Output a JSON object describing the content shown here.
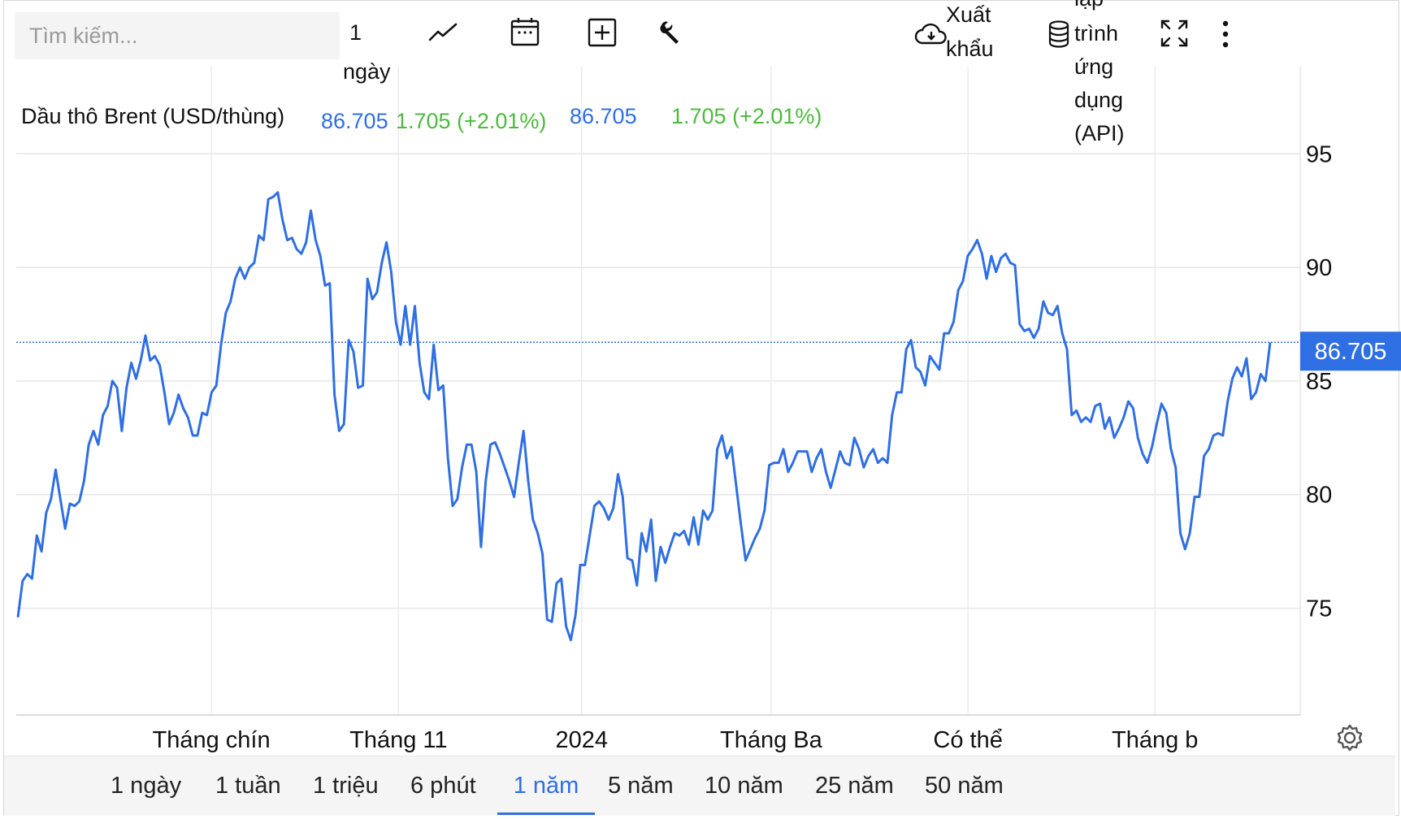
{
  "toolbar": {
    "search_placeholder": "Tìm kiếm...",
    "interval_label_1": "1",
    "interval_label_2": "ngày",
    "export_label_1": "Xuất",
    "export_label_2": "khẩu",
    "api_label_1": "lập",
    "api_label_2": "trình",
    "api_label_3": "ứng",
    "api_label_4": "dụng",
    "api_label_5": "(API)",
    "icons": [
      "line-chart-icon",
      "calendar-icon",
      "add-indicator-icon",
      "wrench-icon",
      "cloud-download-icon",
      "database-icon",
      "fullscreen-icon",
      "more-vertical-icon"
    ]
  },
  "legend": {
    "series_name": "Dầu thô Brent (USD/thùng)",
    "price": "86.705",
    "change": "1.705 (+2.01%)",
    "price_repeat": "86.705",
    "change_repeat": "1.705 (+2.01%)"
  },
  "current_price_label": "86.705",
  "colors": {
    "line": "#2f6fe4",
    "up": "#4cba3c",
    "grid": "#e6e6e6",
    "price_tag_bg": "#2f6fe4"
  },
  "range_buttons": [
    {
      "label": "1 ngày",
      "active": false
    },
    {
      "label": "1 tuần",
      "active": false
    },
    {
      "label": "1 triệu",
      "active": false
    },
    {
      "label": "6 phút",
      "active": false
    },
    {
      "label": "1 năm",
      "active": true
    },
    {
      "label": "5 năm",
      "active": false
    },
    {
      "label": "10 năm",
      "active": false
    },
    {
      "label": "25 năm",
      "active": false
    },
    {
      "label": "50 năm",
      "active": false
    }
  ],
  "chart_data": {
    "type": "line",
    "title": "",
    "xlabel": "",
    "ylabel": "",
    "ylim": [
      70.3,
      98.8
    ],
    "y_ticks": [
      75,
      80,
      85,
      90,
      95
    ],
    "x_tick_labels": [
      "Tháng chín",
      "Tháng 11",
      "2024",
      "Tháng Ba",
      "Có thể",
      "Tháng b"
    ],
    "grid": true,
    "current_value": 86.705,
    "series": [
      {
        "name": "Dầu thô Brent (USD/thùng)",
        "values": [
          74.6,
          76.2,
          76.5,
          76.3,
          78.2,
          77.5,
          79.2,
          79.8,
          81.1,
          79.8,
          78.5,
          79.6,
          79.5,
          79.7,
          80.6,
          82.2,
          82.8,
          82.2,
          83.5,
          83.9,
          85.0,
          84.7,
          82.8,
          84.7,
          85.8,
          85.1,
          85.9,
          87.0,
          85.9,
          86.1,
          85.7,
          84.5,
          83.1,
          83.6,
          84.4,
          83.8,
          83.4,
          82.6,
          82.6,
          83.6,
          83.5,
          84.5,
          84.8,
          86.6,
          88.0,
          88.5,
          89.5,
          90.0,
          89.5,
          90.0,
          90.2,
          91.4,
          91.2,
          93.0,
          93.1,
          93.3,
          92.1,
          91.2,
          91.3,
          90.8,
          90.6,
          91.1,
          92.5,
          91.2,
          90.5,
          89.2,
          89.3,
          84.4,
          82.8,
          83.1,
          86.8,
          86.3,
          84.7,
          84.8,
          89.5,
          88.6,
          88.9,
          90.2,
          91.1,
          89.8,
          87.6,
          86.6,
          88.3,
          86.6,
          88.3,
          85.8,
          84.5,
          84.2,
          86.6,
          84.6,
          84.8,
          81.6,
          79.5,
          79.8,
          81.2,
          82.2,
          82.2,
          81.0,
          77.7,
          80.6,
          82.2,
          82.3,
          81.8,
          81.2,
          80.6,
          79.9,
          81.4,
          82.8,
          80.6,
          78.9,
          78.3,
          77.4,
          74.5,
          74.4,
          76.1,
          76.3,
          74.2,
          73.6,
          74.7,
          76.9,
          76.9,
          78.2,
          79.5,
          79.7,
          79.4,
          78.9,
          79.4,
          80.9,
          79.9,
          77.2,
          77.1,
          76.0,
          78.3,
          77.5,
          78.9,
          76.2,
          77.7,
          77.0,
          77.7,
          78.3,
          78.2,
          78.4,
          77.8,
          79.0,
          77.8,
          79.3,
          78.9,
          79.3,
          82.0,
          82.6,
          81.6,
          82.1,
          80.4,
          78.7,
          77.1,
          77.6,
          78.1,
          78.5,
          79.3,
          81.3,
          81.4,
          81.4,
          82.0,
          81.0,
          81.4,
          81.9,
          81.9,
          81.9,
          81.0,
          81.6,
          82.0,
          81.0,
          80.3,
          81.1,
          81.9,
          81.4,
          81.3,
          82.5,
          82.0,
          81.2,
          81.7,
          82.0,
          81.4,
          81.6,
          81.4,
          83.5,
          84.5,
          84.5,
          86.4,
          86.8,
          85.6,
          85.4,
          84.8,
          86.1,
          85.8,
          85.5,
          87.1,
          87.1,
          87.6,
          89.0,
          89.4,
          90.5,
          90.8,
          91.2,
          90.6,
          89.5,
          90.5,
          89.8,
          90.4,
          90.6,
          90.2,
          90.1,
          87.5,
          87.2,
          87.3,
          86.9,
          87.3,
          88.5,
          88.0,
          87.9,
          88.3,
          87.1,
          86.4,
          83.5,
          83.7,
          83.2,
          83.4,
          83.2,
          83.9,
          84.0,
          82.9,
          83.4,
          82.5,
          82.9,
          83.4,
          84.1,
          83.8,
          82.5,
          81.8,
          81.4,
          82.1,
          83.1,
          84.0,
          83.6,
          82.0,
          81.2,
          78.3,
          77.6,
          78.3,
          79.9,
          79.9,
          81.7,
          82.0,
          82.6,
          82.7,
          82.6,
          84.1,
          85.1,
          85.6,
          85.2,
          86.0,
          84.2,
          84.5,
          85.3,
          85.0,
          86.7
        ]
      }
    ]
  }
}
